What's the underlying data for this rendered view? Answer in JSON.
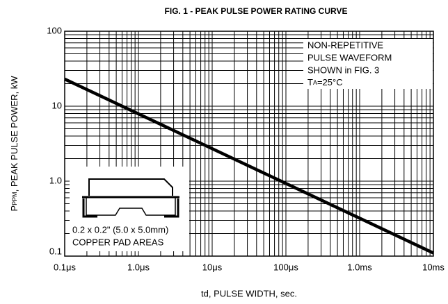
{
  "chart_data": {
    "type": "line",
    "title": "FIG. 1 - PEAK PULSE POWER RATING CURVE",
    "x_label": "td, PULSE WIDTH, sec.",
    "y_label_parts": [
      "P",
      "PPM",
      ", PEAK PULSE POWER, kW"
    ],
    "log_x": true,
    "log_y": true,
    "grid": true,
    "minor_grid": true,
    "xlim": [
      1e-07,
      0.01
    ],
    "xticks": [
      {
        "value": 1e-07,
        "label": "0.1μs"
      },
      {
        "value": 1e-06,
        "label": "1.0μs"
      },
      {
        "value": 1e-05,
        "label": "10μs"
      },
      {
        "value": 0.0001,
        "label": "100μs"
      },
      {
        "value": 0.001,
        "label": "1.0ms"
      },
      {
        "value": 0.01,
        "label": "10ms"
      }
    ],
    "ylim": [
      0.1,
      100
    ],
    "yticks": [
      0.1,
      {
        "value": 1,
        "label": "1.0"
      },
      10,
      100
    ],
    "series": [
      {
        "color": "#000000",
        "x": [
          1e-07,
          0.01
        ],
        "values": [
          23,
          0.11
        ]
      }
    ],
    "annotation": [
      "NON-REPETITIVE",
      "PULSE WAVEFORM",
      "SHOWN in FIG. 3",
      [
        "T",
        "A",
        "=25°C"
      ]
    ],
    "inset": [
      "0.2 x 0.2\" (5.0 x 5.0mm)",
      "COPPER PAD AREAS"
    ]
  }
}
